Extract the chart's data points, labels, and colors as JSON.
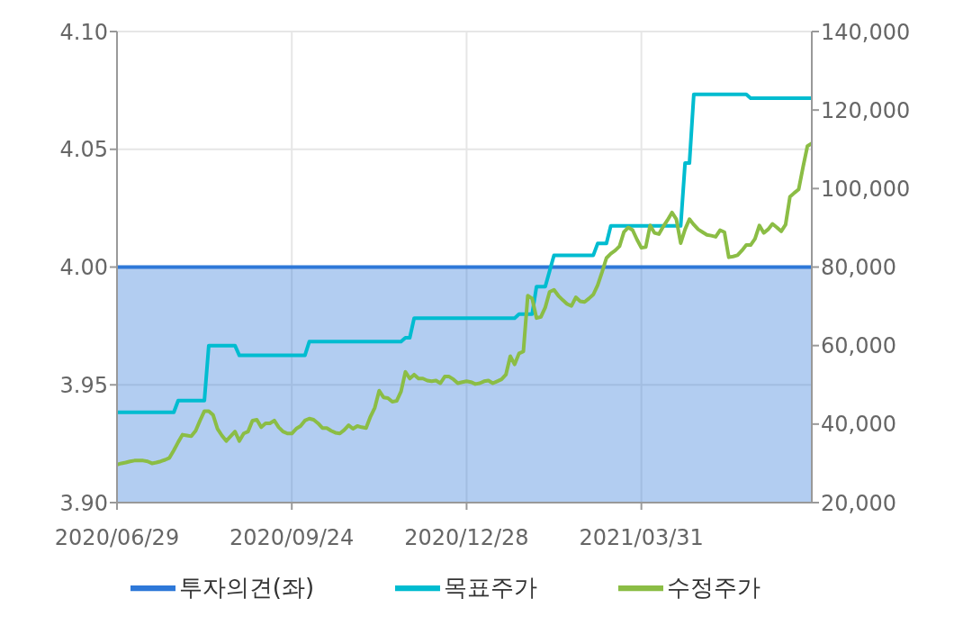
{
  "chart_data": {
    "type": "line",
    "categories": [
      "2020/06/29",
      null,
      null,
      null,
      null,
      null,
      null,
      null,
      null,
      null,
      null,
      null,
      null,
      null,
      null,
      null,
      null,
      null,
      null,
      null,
      null,
      null,
      null,
      null,
      null,
      null,
      null,
      null,
      null,
      null,
      null,
      null,
      null,
      null,
      null,
      null,
      null,
      null,
      null,
      null,
      "2020/09/24",
      null,
      null,
      null,
      null,
      null,
      null,
      null,
      null,
      null,
      null,
      null,
      null,
      null,
      null,
      null,
      null,
      null,
      null,
      null,
      null,
      null,
      null,
      null,
      null,
      null,
      null,
      null,
      null,
      null,
      null,
      null,
      null,
      null,
      null,
      null,
      null,
      null,
      null,
      null,
      "2020/12/28",
      null,
      null,
      null,
      null,
      null,
      null,
      null,
      null,
      null,
      null,
      null,
      null,
      null,
      null,
      null,
      null,
      null,
      null,
      null,
      null,
      null,
      null,
      null,
      null,
      null,
      null,
      null,
      null,
      null,
      null,
      null,
      null,
      null,
      null,
      null,
      null,
      null,
      null,
      null,
      "2021/03/31",
      null,
      null,
      null,
      null,
      null,
      null,
      null,
      null,
      null,
      null,
      null,
      null,
      null,
      null,
      null,
      null,
      null,
      null,
      null,
      null,
      null,
      null,
      null,
      null,
      null,
      null,
      null,
      null,
      null,
      null,
      null,
      null,
      null,
      null,
      null,
      null,
      null,
      null,
      null
    ],
    "series": [
      {
        "name": "투자의견(좌)",
        "type": "area",
        "color": "#2e78d8",
        "values": [
          4,
          4,
          4,
          4,
          4,
          4,
          4,
          4,
          4,
          4,
          4,
          4,
          4,
          4,
          4,
          4,
          4,
          4,
          4,
          4,
          4,
          4,
          4,
          4,
          4,
          4,
          4,
          4,
          4,
          4,
          4,
          4,
          4,
          4,
          4,
          4,
          4,
          4,
          4,
          4,
          4,
          4,
          4,
          4,
          4,
          4,
          4,
          4,
          4,
          4,
          4,
          4,
          4,
          4,
          4,
          4,
          4,
          4,
          4,
          4,
          4,
          4,
          4,
          4,
          4,
          4,
          4,
          4,
          4,
          4,
          4,
          4,
          4,
          4,
          4,
          4,
          4,
          4,
          4,
          4,
          4,
          4,
          4,
          4,
          4,
          4,
          4,
          4,
          4,
          4,
          4,
          4,
          4,
          4,
          4,
          4,
          4,
          4,
          4,
          4,
          4,
          4,
          4,
          4,
          4,
          4,
          4,
          4,
          4,
          4,
          4,
          4,
          4,
          4,
          4,
          4,
          4,
          4,
          4,
          4,
          4,
          4,
          4,
          4,
          4,
          4,
          4,
          4,
          4,
          4,
          4,
          4,
          4,
          4,
          4,
          4,
          4,
          4,
          4,
          4,
          4,
          4,
          4,
          4,
          4,
          4,
          4,
          4,
          4,
          4,
          4,
          4,
          4,
          4,
          4,
          4,
          4,
          4,
          4,
          4
        ]
      },
      {
        "name": "목표주가",
        "axis": "y2",
        "color": "#00bcd0",
        "values": [
          43000,
          43000,
          43000,
          43000,
          43000,
          43000,
          43000,
          43000,
          43000,
          43000,
          43000,
          43000,
          43000,
          43000,
          46000,
          46000,
          46000,
          46000,
          46000,
          46000,
          46000,
          60000,
          60000,
          60000,
          60000,
          60000,
          60000,
          60000,
          57500,
          57500,
          57500,
          57500,
          57500,
          57500,
          57500,
          57500,
          57500,
          57500,
          57500,
          57500,
          57500,
          57500,
          57500,
          57500,
          61000,
          61000,
          61000,
          61000,
          61000,
          61000,
          61000,
          61000,
          61000,
          61000,
          61000,
          61000,
          61000,
          61000,
          61000,
          61000,
          61000,
          61000,
          61000,
          61000,
          61000,
          61000,
          62000,
          62000,
          67000,
          67000,
          67000,
          67000,
          67000,
          67000,
          67000,
          67000,
          67000,
          67000,
          67000,
          67000,
          67000,
          67000,
          67000,
          67000,
          67000,
          67000,
          67000,
          67000,
          67000,
          67000,
          67000,
          67000,
          68000,
          68000,
          68000,
          68000,
          75000,
          75000,
          75000,
          79000,
          83000,
          83000,
          83000,
          83000,
          83000,
          83000,
          83000,
          83000,
          83000,
          83000,
          86000,
          86000,
          86000,
          90500,
          90500,
          90500,
          90500,
          90500,
          90500,
          90500,
          90500,
          90500,
          90500,
          90500,
          90500,
          90500,
          90500,
          90500,
          90500,
          90500,
          106500,
          106500,
          124000,
          124000,
          124000,
          124000,
          124000,
          124000,
          124000,
          124000,
          124000,
          124000,
          124000,
          124000,
          124000,
          123000,
          123000,
          123000,
          123000,
          123000,
          123000,
          123000,
          123000,
          123000,
          123000,
          123000,
          123000,
          123000,
          123000,
          123000
        ]
      },
      {
        "name": "수정주가",
        "axis": "y2",
        "color": "#8bbd45",
        "values": [
          29700,
          30000,
          30200,
          30500,
          30700,
          30700,
          30700,
          30500,
          30000,
          30200,
          30500,
          30900,
          31400,
          33300,
          35400,
          37300,
          37100,
          36900,
          38300,
          40900,
          43300,
          43300,
          42300,
          38800,
          37100,
          35700,
          36900,
          38100,
          35700,
          37600,
          38100,
          40900,
          41100,
          39200,
          40200,
          40200,
          40900,
          39200,
          38100,
          37600,
          37600,
          38800,
          39500,
          40900,
          41400,
          41100,
          40200,
          39000,
          39000,
          38300,
          37800,
          37600,
          38500,
          39700,
          38800,
          39500,
          39200,
          39000,
          41900,
          44200,
          48500,
          46800,
          46600,
          45700,
          45900,
          48300,
          53300,
          51600,
          52600,
          51600,
          51600,
          51100,
          50900,
          51100,
          50400,
          52100,
          52100,
          51400,
          50400,
          50700,
          50900,
          50700,
          50200,
          50400,
          50900,
          51100,
          50400,
          50900,
          51400,
          52600,
          57300,
          55200,
          58000,
          58500,
          72700,
          72000,
          67000,
          67300,
          69700,
          73700,
          74200,
          72700,
          71600,
          70600,
          70100,
          72300,
          71300,
          71100,
          72000,
          73000,
          75400,
          78700,
          82300,
          83400,
          84200,
          85300,
          88900,
          90100,
          89400,
          87000,
          84900,
          85100,
          90600,
          88700,
          88400,
          90300,
          92000,
          93900,
          92200,
          86100,
          89600,
          92200,
          90800,
          89600,
          88900,
          88200,
          88000,
          87700,
          89400,
          88900,
          82500,
          82700,
          83000,
          84200,
          85600,
          85600,
          87200,
          90600,
          88700,
          89600,
          91000,
          90100,
          89100,
          90800,
          97900,
          98900,
          99800,
          105500,
          110800,
          111500
        ]
      }
    ],
    "ylim": [
      3.9,
      4.1
    ],
    "yticks": [
      {
        "value": 3.9,
        "label": "3.90"
      },
      {
        "value": 3.95,
        "label": "3.95"
      },
      {
        "value": 4,
        "label": "4.00"
      },
      {
        "value": 4.05,
        "label": "4.05"
      },
      {
        "value": 4.1,
        "label": "4.10"
      }
    ],
    "y2lim": [
      20000,
      140000
    ],
    "y2ticks": [
      {
        "value": 20000,
        "label": "20,000"
      },
      {
        "value": 40000,
        "label": "40,000"
      },
      {
        "value": 60000,
        "label": "60,000"
      },
      {
        "value": 80000,
        "label": "80,000"
      },
      {
        "value": 100000,
        "label": "100,000"
      },
      {
        "value": 120000,
        "label": "120,000"
      },
      {
        "value": 140000,
        "label": "140,000"
      }
    ],
    "grid": true,
    "legend": "bottom",
    "marker": "none",
    "line_style": "solid"
  }
}
